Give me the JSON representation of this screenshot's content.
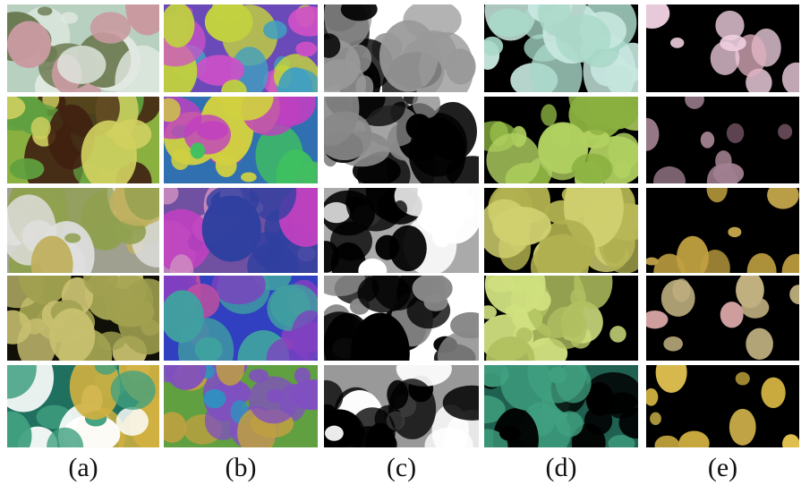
{
  "columns": [
    {
      "label": "(a)"
    },
    {
      "label": "(b)"
    },
    {
      "label": "(c)"
    },
    {
      "label": "(d)"
    },
    {
      "label": "(e)"
    }
  ]
}
